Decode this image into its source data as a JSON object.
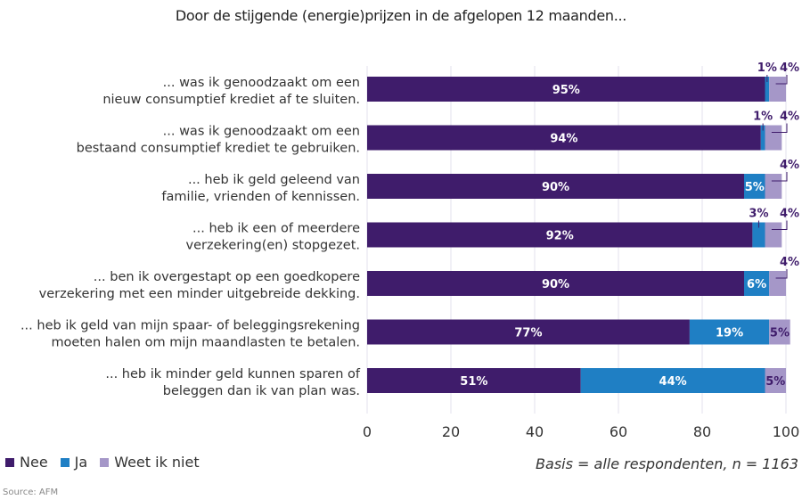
{
  "chart_data": {
    "type": "bar",
    "orientation": "horizontal",
    "stacked": true,
    "title": "Door de stijgende (energie)prijzen in de afgelopen 12 maanden...",
    "xlabel": "",
    "ylabel": "",
    "xlim": [
      0,
      100
    ],
    "xticks": [
      "0",
      "20",
      "40",
      "60",
      "80",
      "100"
    ],
    "grid": true,
    "legend_position": "bottom-left",
    "categories": [
      [
        "... was ik genoodzaakt om een",
        "nieuw consumptief krediet af te sluiten."
      ],
      [
        "... was ik genoodzaakt om een",
        "bestaand consumptief krediet te gebruiken."
      ],
      [
        "... heb ik geld geleend van",
        "familie, vrienden of kennissen."
      ],
      [
        "... heb ik een of meerdere",
        "verzekering(en) stopgezet."
      ],
      [
        "... ben ik overgestapt op een goedkopere",
        "verzekering met een minder uitgebreide dekking."
      ],
      [
        "... heb ik geld van mijn spaar- of beleggingsrekening",
        "moeten halen om mijn maandlasten te betalen."
      ],
      [
        "... heb ik minder geld kunnen sparen of",
        "beleggen dan ik van plan was."
      ]
    ],
    "series": [
      {
        "name": "Nee",
        "color": "#3f1c6b",
        "values": [
          95,
          94,
          90,
          92,
          90,
          77,
          51
        ]
      },
      {
        "name": "Ja",
        "color": "#1f7fc4",
        "values": [
          1,
          1,
          5,
          3,
          6,
          19,
          44
        ]
      },
      {
        "name": "Weet ik niet",
        "color": "#a597c8",
        "values": [
          4,
          4,
          4,
          4,
          4,
          5,
          5
        ]
      }
    ],
    "basis_note": "Basis = alle respondenten, n = 1163"
  },
  "legend": [
    {
      "label": "Nee",
      "color": "#3f1c6b"
    },
    {
      "label": "Ja",
      "color": "#1f7fc4"
    },
    {
      "label": "Weet ik niet",
      "color": "#a597c8"
    }
  ],
  "source": "Source: AFM"
}
